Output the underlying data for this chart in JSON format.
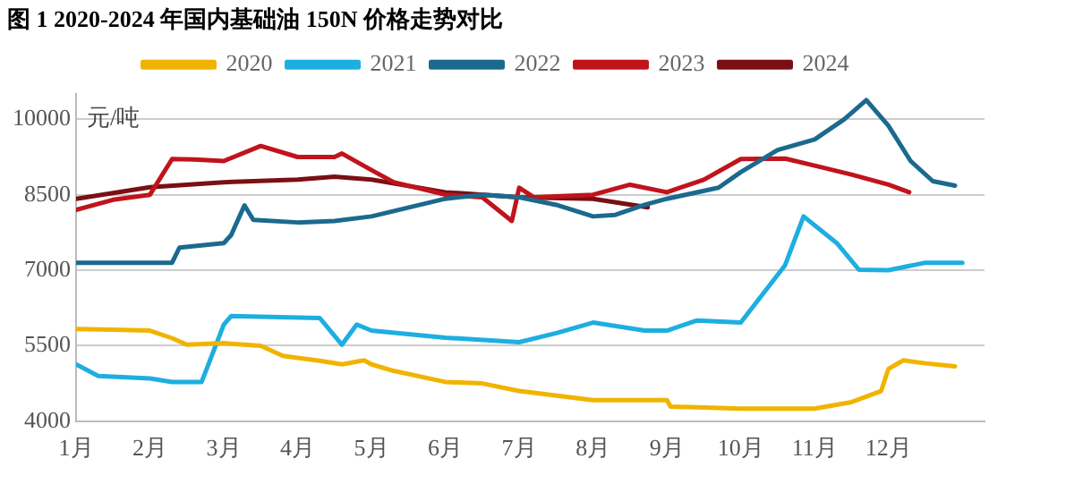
{
  "chart_data": {
    "type": "line",
    "title": "图 1 2020-2024 年国内基础油 150N 价格走势对比",
    "ylabel": "元/吨",
    "xlim": [
      1,
      13.3
    ],
    "xticks": [
      {
        "value": 1,
        "label": "1月"
      },
      {
        "value": 2,
        "label": "2月"
      },
      {
        "value": 3,
        "label": "3月"
      },
      {
        "value": 4,
        "label": "4月"
      },
      {
        "value": 5,
        "label": "5月"
      },
      {
        "value": 6,
        "label": "6月"
      },
      {
        "value": 7,
        "label": "7月"
      },
      {
        "value": 8,
        "label": "8月"
      },
      {
        "value": 9,
        "label": "9月"
      },
      {
        "value": 10,
        "label": "10月"
      },
      {
        "value": 11,
        "label": "11月"
      },
      {
        "value": 12,
        "label": "12月"
      }
    ],
    "ylim": [
      4000,
      10500
    ],
    "yticks": [
      4000,
      5500,
      7000,
      8500,
      10000
    ],
    "grid": "y",
    "legend": "top",
    "marker": "none",
    "line_style": "solid",
    "series": [
      {
        "name": "2020",
        "color": "#f0b400",
        "x": [
          1,
          1.5,
          2,
          2.3,
          2.5,
          3,
          3.5,
          3.8,
          4,
          4.3,
          4.6,
          4.9,
          5,
          5.3,
          6,
          6.5,
          7,
          8,
          9,
          9.05,
          10,
          11,
          11.5,
          11.9,
          12,
          12.2,
          12.5,
          12.9
        ],
        "values": [
          5830,
          5820,
          5800,
          5650,
          5520,
          5550,
          5500,
          5300,
          5260,
          5200,
          5130,
          5210,
          5130,
          5000,
          4780,
          4750,
          4600,
          4420,
          4420,
          4290,
          4250,
          4250,
          4380,
          4600,
          5040,
          5210,
          5150,
          5090
        ]
      },
      {
        "name": "2021",
        "color": "#1eaee0",
        "x": [
          1,
          1.3,
          2,
          2.3,
          2.7,
          3,
          3.1,
          4.3,
          4.6,
          4.8,
          5,
          6,
          7,
          7.5,
          8,
          8.7,
          9,
          9.4,
          10,
          10.6,
          10.85,
          11.3,
          11.6,
          12,
          12.5,
          13
        ],
        "values": [
          5130,
          4900,
          4850,
          4780,
          4780,
          5920,
          6090,
          6050,
          5520,
          5920,
          5800,
          5660,
          5570,
          5750,
          5960,
          5800,
          5800,
          6000,
          5960,
          7100,
          8070,
          7540,
          7010,
          7000,
          7150,
          7150
        ]
      },
      {
        "name": "2022",
        "color": "#1b6a8e",
        "x": [
          1,
          2,
          2.3,
          2.4,
          3,
          3.1,
          3.28,
          3.4,
          4,
          4.5,
          5,
          6,
          6.5,
          7,
          7.5,
          8,
          8.3,
          8.7,
          9,
          9.7,
          10,
          10.5,
          11,
          11.4,
          11.7,
          12,
          12.3,
          12.6,
          12.9
        ],
        "values": [
          7150,
          7150,
          7150,
          7450,
          7540,
          7700,
          8290,
          8000,
          7950,
          7980,
          8070,
          8420,
          8500,
          8450,
          8300,
          8070,
          8100,
          8300,
          8420,
          8640,
          8950,
          9390,
          9600,
          10000,
          10380,
          9870,
          9170,
          8770,
          8680
        ]
      },
      {
        "name": "2023",
        "color": "#c0141c",
        "x": [
          1,
          1.5,
          2,
          2.3,
          2.6,
          3,
          3.5,
          4,
          4.5,
          4.6,
          5,
          5.3,
          6,
          6.5,
          6.9,
          7,
          7.2,
          8,
          8.5,
          9,
          9.5,
          10,
          10.6,
          11,
          11.5,
          12,
          12.28
        ],
        "values": [
          8200,
          8400,
          8500,
          9210,
          9200,
          9170,
          9470,
          9250,
          9250,
          9320,
          8990,
          8750,
          8500,
          8450,
          7980,
          8640,
          8450,
          8500,
          8700,
          8550,
          8800,
          9210,
          9220,
          9080,
          8900,
          8700,
          8550
        ]
      },
      {
        "name": "2024",
        "color": "#7a0f14",
        "x": [
          1,
          2,
          3,
          4,
          4.5,
          5,
          6,
          7,
          8,
          8.74
        ],
        "values": [
          8420,
          8650,
          8750,
          8800,
          8860,
          8800,
          8550,
          8450,
          8420,
          8250
        ]
      }
    ]
  }
}
